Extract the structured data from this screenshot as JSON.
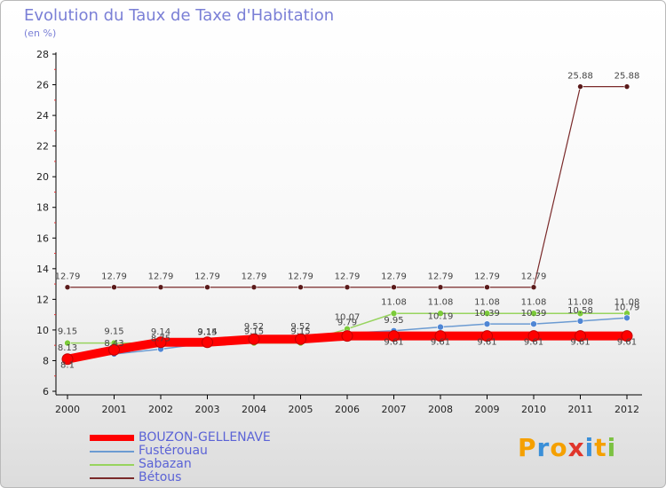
{
  "header": {
    "title": "Evolution du Taux de Taxe d'Habitation",
    "unit": "(en %)"
  },
  "chart_data": {
    "type": "line",
    "title": "Evolution du Taux de Taxe d'Habitation",
    "ylabel": "(en %)",
    "xlabel": "",
    "ylim": [
      6,
      28
    ],
    "yticks": [
      "6",
      "8",
      "10",
      "12",
      "14",
      "16",
      "18",
      "20",
      "22",
      "24",
      "26",
      "28"
    ],
    "categories": [
      "2000",
      "2001",
      "2002",
      "2003",
      "2004",
      "2005",
      "2006",
      "2007",
      "2008",
      "2009",
      "2010",
      "2011",
      "2012"
    ],
    "grid": false,
    "legend_position": "bottom-left",
    "series": [
      {
        "name": "BOUZON-GELLENAVE",
        "color": "#ff0000",
        "values": [
          8.1,
          8.7,
          9.2,
          9.2,
          9.4,
          9.4,
          9.61,
          9.61,
          9.61,
          9.61,
          9.61,
          9.61,
          9.61
        ],
        "labels": [
          "8.1",
          "",
          "",
          "",
          "",
          "",
          "",
          "9.61",
          "9.61",
          "9.61",
          "9.61",
          "9.61",
          "9.61"
        ]
      },
      {
        "name": "Fustérouau",
        "color": "#6c9bd2",
        "values": [
          8.13,
          8.43,
          8.75,
          9.15,
          9.52,
          9.52,
          9.79,
          9.95,
          10.19,
          10.39,
          10.39,
          10.58,
          10.79
        ],
        "labels": [
          "8.13",
          "8.43",
          "8.75",
          "9.15",
          "9.52",
          "9.52",
          "9.79",
          "9.95",
          "10.19",
          "10.39",
          "10.39",
          "10.58",
          "10.79"
        ]
      },
      {
        "name": "Sabazan",
        "color": "#97d45e",
        "values": [
          9.15,
          9.15,
          9.14,
          9.14,
          9.15,
          9.15,
          10.07,
          11.08,
          11.08,
          11.08,
          11.08,
          11.08,
          11.08
        ],
        "labels": [
          "9.15",
          "9.15",
          "9.14",
          "9.14",
          "9.15",
          "9.15",
          "10.07",
          "11.08",
          "11.08",
          "11.08",
          "11.08",
          "11.08",
          "11.08"
        ]
      },
      {
        "name": "Bétous",
        "color": "#7a2a2a",
        "values": [
          12.79,
          12.79,
          12.79,
          12.79,
          12.79,
          12.79,
          12.79,
          12.79,
          12.79,
          12.79,
          12.79,
          25.88,
          25.88
        ],
        "labels": [
          "12.79",
          "12.79",
          "12.79",
          "12.79",
          "12.79",
          "12.79",
          "12.79",
          "12.79",
          "12.79",
          "12.79",
          "12.79",
          "25.88",
          "25.88"
        ]
      }
    ]
  },
  "legend": {
    "items": [
      {
        "label": "BOUZON-GELLENAVE",
        "color": "#ff0000"
      },
      {
        "label": "Fustérouau",
        "color": "#6c9bd2"
      },
      {
        "label": "Sabazan",
        "color": "#97d45e"
      },
      {
        "label": "Bétous",
        "color": "#7a2a2a"
      }
    ]
  },
  "brand": {
    "name": "Proxiti",
    "letters": [
      "P",
      "r",
      "o",
      "x",
      "i",
      "t",
      "i"
    ],
    "colors": [
      "#f5a000",
      "#3a8fd8",
      "#f5a000",
      "#e0352b",
      "#3a8fd8",
      "#f5a000",
      "#7cc242"
    ]
  }
}
